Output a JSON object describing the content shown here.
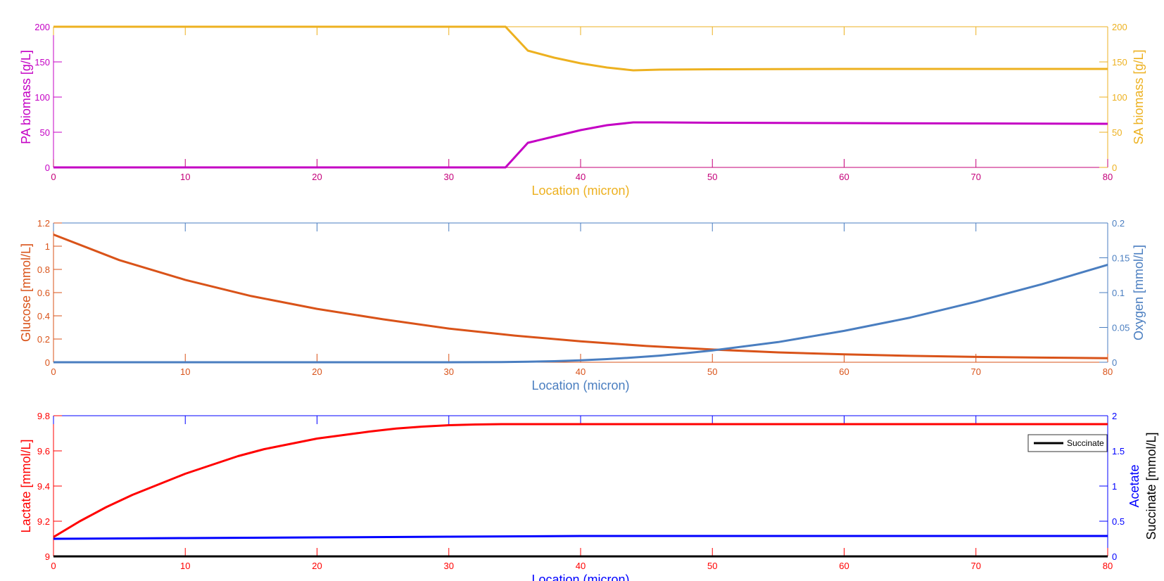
{
  "chart_data": [
    {
      "type": "line",
      "xlabel": "Location (micron)",
      "xlim": [
        0,
        80
      ],
      "xticks": [
        0,
        10,
        20,
        30,
        40,
        50,
        60,
        70,
        80
      ],
      "grid": false,
      "y_left": {
        "label": "PA biomass [g/L]",
        "lim": [
          0,
          200
        ],
        "ticks": [
          0,
          50,
          100,
          150,
          200
        ],
        "color": "#C400C4"
      },
      "y_right": {
        "label": "SA biomass [g/L]",
        "lim": [
          0,
          200
        ],
        "ticks": [
          0,
          50,
          100,
          150,
          200
        ],
        "color": "#EDB120"
      },
      "axis_color": "#C4007A",
      "xlabel_color": "#EDB120",
      "series": [
        {
          "name": "",
          "axis": "left",
          "color": "#C400C4",
          "x": [
            0,
            34.3,
            36,
            38,
            40,
            42,
            44,
            46,
            50,
            60,
            70,
            80
          ],
          "y": [
            0,
            0,
            35,
            44,
            53,
            60,
            64,
            64,
            63.5,
            63,
            62.5,
            62
          ]
        },
        {
          "name": "",
          "axis": "right",
          "color": "#EDB120",
          "x": [
            0,
            34.3,
            36,
            38,
            40,
            42,
            44,
            46,
            50,
            60,
            70,
            80
          ],
          "y": [
            200,
            200,
            166,
            156,
            148,
            142,
            138,
            139,
            139.5,
            140,
            140,
            140
          ]
        }
      ]
    },
    {
      "type": "line",
      "xlabel": "Location (micron)",
      "xlim": [
        0,
        80
      ],
      "xticks": [
        0,
        10,
        20,
        30,
        40,
        50,
        60,
        70,
        80
      ],
      "grid": false,
      "y_left": {
        "label": "Glucose [mmol/L]",
        "lim": [
          0,
          1.2
        ],
        "ticks": [
          0,
          0.2,
          0.4,
          0.6,
          0.8,
          1,
          1.2
        ],
        "color": "#D95319"
      },
      "y_right": {
        "label": "Oxygen [mmol/L]",
        "lim": [
          0,
          0.2
        ],
        "ticks": [
          0,
          0.05,
          0.1,
          0.15,
          0.2
        ],
        "color": "#4A7EC0"
      },
      "axis_color": "#D95319",
      "xlabel_color": "#4A7EC0",
      "series": [
        {
          "name": "",
          "axis": "left",
          "color": "#D95319",
          "x": [
            0,
            5,
            10,
            15,
            20,
            25,
            30,
            35,
            40,
            45,
            50,
            55,
            60,
            65,
            70,
            75,
            80
          ],
          "y": [
            1.1,
            0.88,
            0.71,
            0.57,
            0.46,
            0.37,
            0.29,
            0.23,
            0.18,
            0.14,
            0.11,
            0.085,
            0.068,
            0.055,
            0.046,
            0.04,
            0.035
          ]
        },
        {
          "name": "",
          "axis": "right",
          "color": "#4A7EC0",
          "x": [
            0,
            30,
            34,
            36,
            38,
            40,
            42,
            44,
            46,
            48,
            50,
            55,
            60,
            65,
            70,
            75,
            80
          ],
          "y": [
            0,
            0,
            0.0003,
            0.0007,
            0.0015,
            0.0028,
            0.0045,
            0.0068,
            0.0095,
            0.013,
            0.017,
            0.029,
            0.045,
            0.064,
            0.087,
            0.112,
            0.14
          ]
        }
      ]
    },
    {
      "type": "line",
      "xlabel": "Location (micron)",
      "xlim": [
        0,
        80
      ],
      "xticks": [
        0,
        10,
        20,
        30,
        40,
        50,
        60,
        70,
        80
      ],
      "grid": false,
      "y_left": {
        "label": "Lactate [mmol/L]",
        "lim": [
          9,
          9.8
        ],
        "ticks": [
          9,
          9.2,
          9.4,
          9.6,
          9.8
        ],
        "color": "#FF0000"
      },
      "y_right": {
        "label_lines": [
          "Acetate",
          "Succinate [mmol/L]"
        ],
        "label_colors": [
          "#0000FF",
          "#000000"
        ],
        "lim": [
          0,
          2
        ],
        "ticks": [
          0,
          0.5,
          1,
          1.5,
          2
        ],
        "color": "#0000FF"
      },
      "axis_color": "#FF0000",
      "xlabel_color": "#0000FF",
      "legend": {
        "entries": [
          "Succinate"
        ],
        "location": "right"
      },
      "series": [
        {
          "name": "",
          "axis": "left",
          "color": "#FF0000",
          "x": [
            0,
            2,
            4,
            6,
            8,
            10,
            12,
            14,
            16,
            18,
            20,
            22,
            24,
            26,
            28,
            30,
            32,
            34,
            40,
            50,
            60,
            70,
            80
          ],
          "y": [
            9.11,
            9.2,
            9.28,
            9.35,
            9.41,
            9.47,
            9.52,
            9.57,
            9.61,
            9.64,
            9.67,
            9.69,
            9.71,
            9.727,
            9.738,
            9.746,
            9.75,
            9.752,
            9.752,
            9.752,
            9.752,
            9.752,
            9.752
          ]
        },
        {
          "name": "",
          "axis": "right",
          "color": "#0000FF",
          "x": [
            0,
            10,
            20,
            30,
            40,
            50,
            60,
            70,
            80
          ],
          "y": [
            0.25,
            0.26,
            0.27,
            0.28,
            0.29,
            0.29,
            0.29,
            0.29,
            0.29
          ]
        },
        {
          "name": "Succinate",
          "axis": "right",
          "color": "#000000",
          "x": [
            0,
            80
          ],
          "y": [
            0,
            0
          ]
        }
      ]
    }
  ]
}
